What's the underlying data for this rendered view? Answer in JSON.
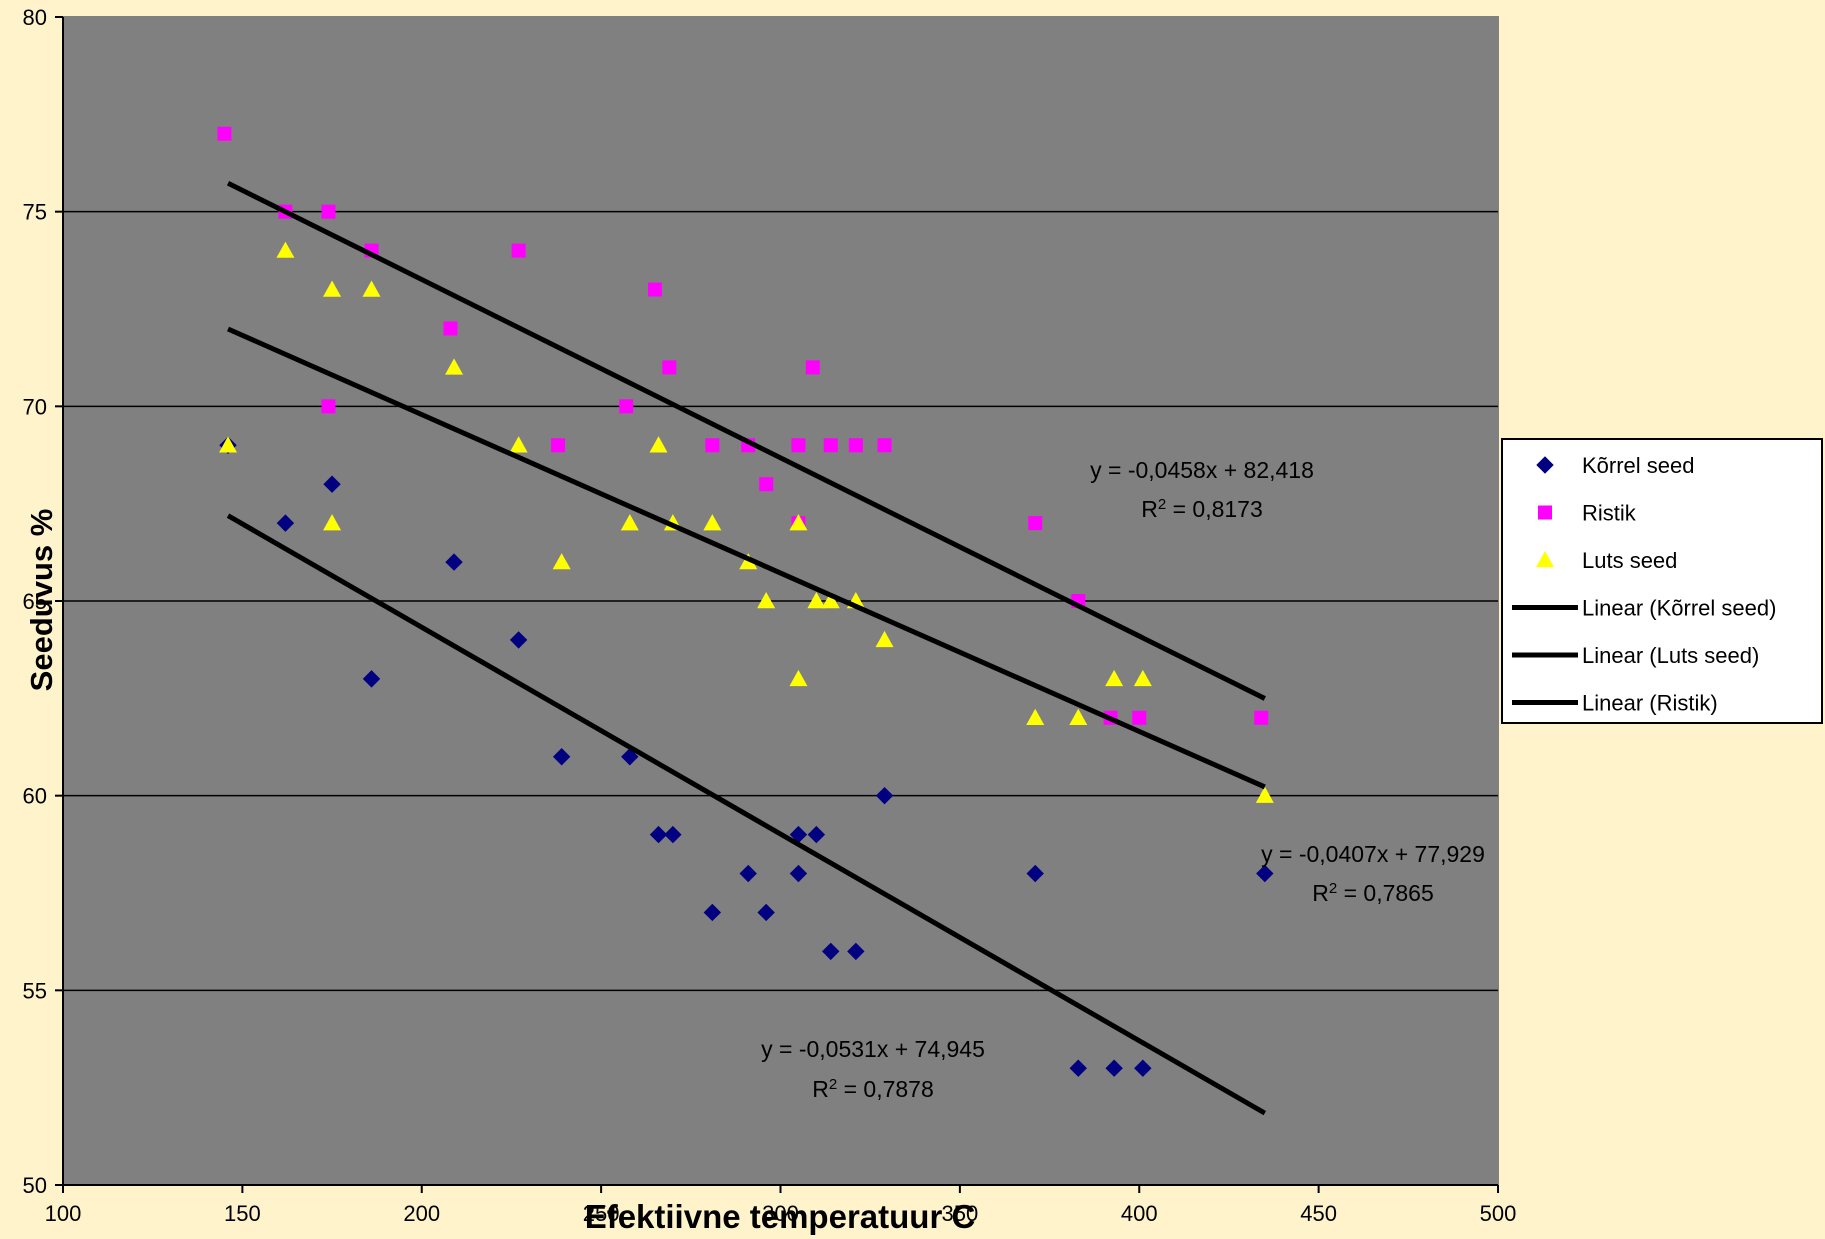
{
  "colors": {
    "background": "#fff3cc",
    "plot_area": "#808080",
    "korrel": "#000080",
    "ristik": "#ff00ff",
    "luts": "#ffff00",
    "trend": "#000000"
  },
  "legend": {
    "items": [
      {
        "label": "Kõrrel seed",
        "marker": "diamond",
        "color": "#000080"
      },
      {
        "label": "Ristik",
        "marker": "square",
        "color": "#ff00ff"
      },
      {
        "label": "Luts seed",
        "marker": "triangle",
        "color": "#ffff00"
      },
      {
        "label": "Linear (Kõrrel seed)",
        "marker": "line",
        "color": "#000000"
      },
      {
        "label": "Linear (Luts seed)",
        "marker": "line",
        "color": "#000000"
      },
      {
        "label": "Linear (Ristik)",
        "marker": "line",
        "color": "#000000"
      }
    ]
  },
  "chart_data": {
    "type": "scatter",
    "xlabel": "Efektiivne temperatuur C",
    "ylabel": "Seeduvus %",
    "xlim": [
      100,
      500
    ],
    "ylim": [
      50,
      80
    ],
    "xticks": [
      100,
      150,
      200,
      250,
      300,
      350,
      400,
      450,
      500
    ],
    "yticks": [
      50,
      55,
      60,
      65,
      70,
      75,
      80
    ],
    "grid": "horizontal",
    "legend_position": "right",
    "series": [
      {
        "name": "Kõrrel seed",
        "marker": "diamond",
        "color": "#000080",
        "points": [
          [
            146,
            69
          ],
          [
            162,
            67
          ],
          [
            175,
            68
          ],
          [
            186,
            63
          ],
          [
            209,
            66
          ],
          [
            227,
            64
          ],
          [
            239,
            61
          ],
          [
            258,
            61
          ],
          [
            266,
            59
          ],
          [
            270,
            59
          ],
          [
            281,
            57
          ],
          [
            291,
            58
          ],
          [
            296,
            57
          ],
          [
            305,
            59
          ],
          [
            305,
            58
          ],
          [
            310,
            59
          ],
          [
            314,
            56
          ],
          [
            321,
            56
          ],
          [
            329,
            60
          ],
          [
            371,
            58
          ],
          [
            383,
            53
          ],
          [
            393,
            53
          ],
          [
            401,
            53
          ],
          [
            435,
            58
          ]
        ]
      },
      {
        "name": "Ristik",
        "marker": "square",
        "color": "#ff00ff",
        "points": [
          [
            145,
            77
          ],
          [
            162,
            75
          ],
          [
            174,
            75
          ],
          [
            174,
            70
          ],
          [
            186,
            74
          ],
          [
            208,
            72
          ],
          [
            227,
            74
          ],
          [
            238,
            69
          ],
          [
            257,
            70
          ],
          [
            265,
            73
          ],
          [
            269,
            71
          ],
          [
            281,
            69
          ],
          [
            291,
            69
          ],
          [
            296,
            68
          ],
          [
            305,
            69
          ],
          [
            305,
            67
          ],
          [
            309,
            71
          ],
          [
            314,
            69
          ],
          [
            321,
            69
          ],
          [
            329,
            69
          ],
          [
            371,
            67
          ],
          [
            383,
            65
          ],
          [
            392,
            62
          ],
          [
            400,
            62
          ],
          [
            434,
            62
          ]
        ]
      },
      {
        "name": "Luts seed",
        "marker": "triangle",
        "color": "#ffff00",
        "points": [
          [
            146,
            69
          ],
          [
            162,
            74
          ],
          [
            175,
            73
          ],
          [
            175,
            67
          ],
          [
            186,
            73
          ],
          [
            209,
            71
          ],
          [
            227,
            69
          ],
          [
            239,
            66
          ],
          [
            258,
            67
          ],
          [
            266,
            69
          ],
          [
            270,
            67
          ],
          [
            281,
            67
          ],
          [
            291,
            66
          ],
          [
            296,
            65
          ],
          [
            305,
            67
          ],
          [
            305,
            63
          ],
          [
            310,
            65
          ],
          [
            314,
            65
          ],
          [
            321,
            65
          ],
          [
            329,
            64
          ],
          [
            371,
            62
          ],
          [
            383,
            62
          ],
          [
            393,
            63
          ],
          [
            401,
            63
          ],
          [
            435,
            60
          ]
        ]
      }
    ],
    "trendlines": [
      {
        "name": "Linear (Ristik)",
        "slope": -0.0458,
        "intercept": 82.418,
        "x_range": [
          146,
          435
        ],
        "equation": "y = -0,0458x + 82,418",
        "r2": "0,8173"
      },
      {
        "name": "Linear (Luts seed)",
        "slope": -0.0407,
        "intercept": 77.929,
        "x_range": [
          146,
          435
        ],
        "equation": "y = -0,0407x + 77,929",
        "r2": "0,7865"
      },
      {
        "name": "Linear (Kõrrel seed)",
        "slope": -0.0531,
        "intercept": 74.945,
        "x_range": [
          146,
          435
        ],
        "equation": "y = -0,0531x + 74,945",
        "r2": "0,7878"
      }
    ]
  }
}
